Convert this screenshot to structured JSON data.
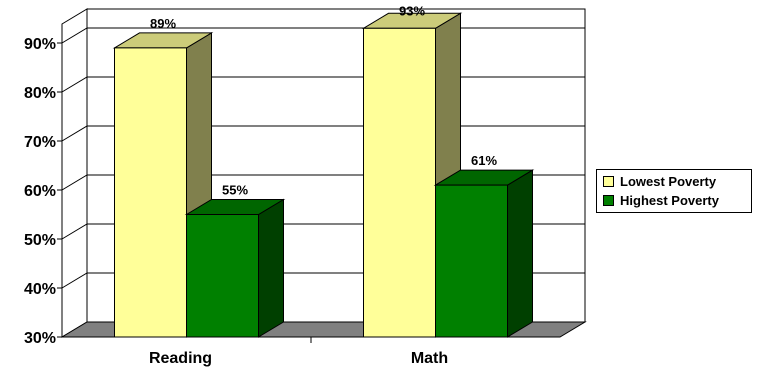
{
  "chart_data": {
    "type": "bar",
    "categories": [
      "Reading",
      "Math"
    ],
    "series": [
      {
        "name": "Lowest Poverty",
        "values": [
          89,
          93
        ],
        "labels": [
          "89%",
          "93%"
        ],
        "color": "#FFFF99"
      },
      {
        "name": "Highest Poverty",
        "values": [
          55,
          61
        ],
        "labels": [
          "55%",
          "61%"
        ],
        "color": "#008000"
      }
    ],
    "ylim": [
      30,
      90
    ],
    "yticks": [
      30,
      40,
      50,
      60,
      70,
      80,
      90
    ],
    "ytick_labels": [
      "30%",
      "40%",
      "50%",
      "60%",
      "70%",
      "80%",
      "90%"
    ],
    "grid": true,
    "three_d": true,
    "legend_position": "right"
  }
}
